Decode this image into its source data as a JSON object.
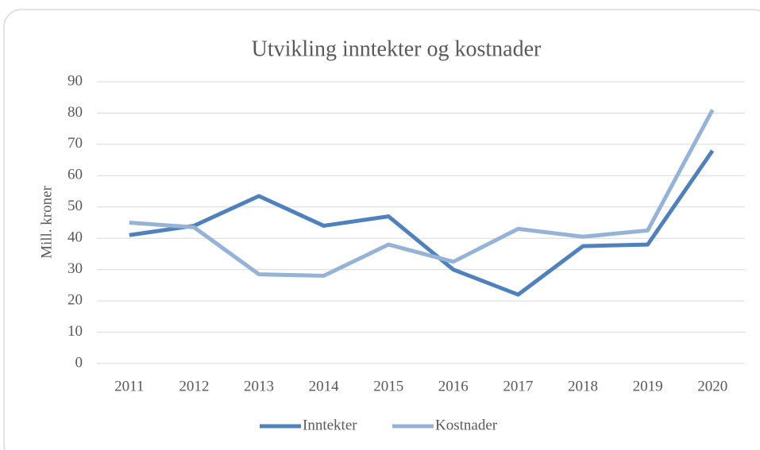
{
  "chart_data": {
    "type": "line",
    "title": "Utvikling  inntekter og kostnader",
    "y_label": "Mill. kroner",
    "categories": [
      "2011",
      "2012",
      "2013",
      "2014",
      "2015",
      "2016",
      "2017",
      "2018",
      "2019",
      "2020"
    ],
    "series": [
      {
        "name": "Inntekter",
        "color": "#4f81bd",
        "values": [
          41,
          44,
          53.5,
          44,
          47,
          30,
          22,
          37.5,
          38,
          68
        ]
      },
      {
        "name": "Kostnader",
        "color": "#95b3d7",
        "values": [
          45,
          43.5,
          28.5,
          28,
          38,
          32.5,
          43,
          40.5,
          42.5,
          81
        ]
      }
    ],
    "ylim": [
      0,
      90
    ],
    "yticks": [
      0,
      10,
      20,
      30,
      40,
      50,
      60,
      70,
      80,
      90
    ],
    "grid": true,
    "legend": "bottom"
  }
}
